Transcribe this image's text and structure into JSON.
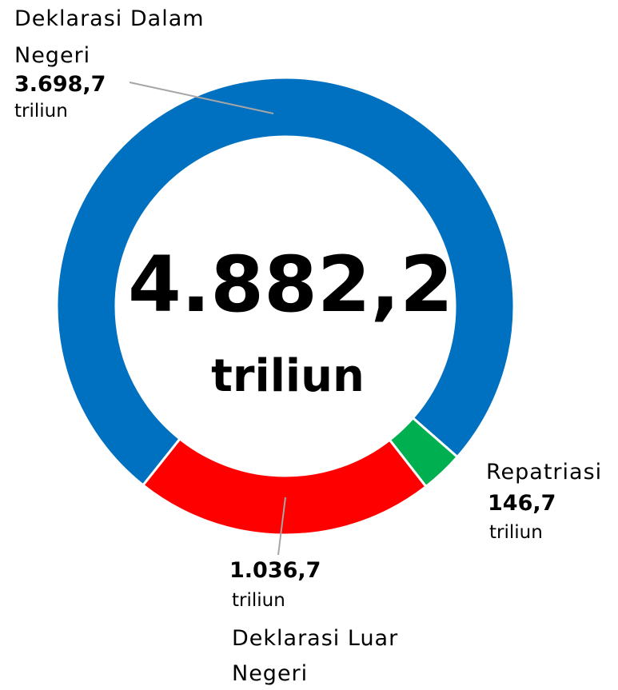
{
  "chart_data": {
    "type": "pie",
    "variant": "donut",
    "unit": "triliun",
    "total": {
      "value": 4882.2,
      "label": "4.882,2",
      "unit": "triliun"
    },
    "slices": [
      {
        "name_line1": "Deklarasi Dalam",
        "name_line2": "Negeri",
        "value": 3698.7,
        "label": "3.698,7",
        "unit": "triliun",
        "color": "#0070C0"
      },
      {
        "name_line1": "Repatriasi",
        "name_line2": "",
        "value": 146.7,
        "label": "146,7",
        "unit": "triliun",
        "color": "#00B050"
      },
      {
        "name_line1": "Deklarasi Luar",
        "name_line2": "Negeri",
        "value": 1036.7,
        "label": "1.036,7",
        "unit": "triliun",
        "color": "#FF0000"
      }
    ]
  }
}
